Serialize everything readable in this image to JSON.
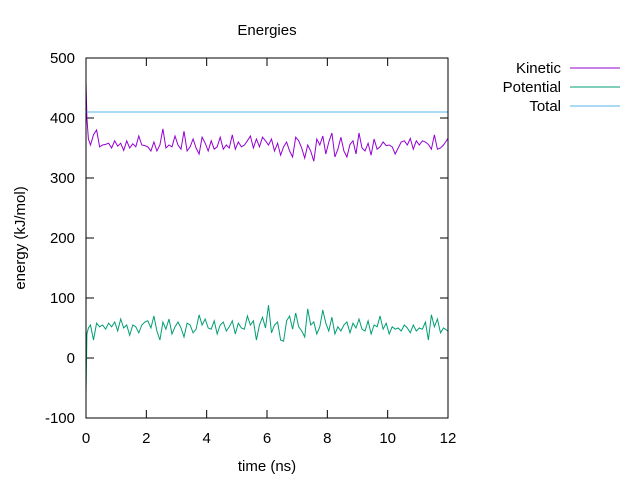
{
  "chart_data": {
    "type": "line",
    "title": "Energies",
    "xlabel": "time (ns)",
    "ylabel": "energy (kJ/mol)",
    "xlim": [
      0,
      12
    ],
    "ylim": [
      -100,
      500
    ],
    "xticks": [
      "0",
      "2",
      "4",
      "6",
      "8",
      "10",
      "12"
    ],
    "yticks": [
      "-100",
      "0",
      "100",
      "200",
      "300",
      "400",
      "500"
    ],
    "grid": false,
    "legend_position": "outside-top-right",
    "series": [
      {
        "name": "Kinetic",
        "color": "#9400d3",
        "x": [
          0,
          0.03,
          0.08,
          0.15,
          0.25,
          0.35,
          0.45,
          0.55,
          0.65,
          0.75,
          0.85,
          0.95,
          1.05,
          1.15,
          1.25,
          1.35,
          1.45,
          1.55,
          1.65,
          1.75,
          1.85,
          1.95,
          2.05,
          2.15,
          2.25,
          2.35,
          2.45,
          2.55,
          2.65,
          2.75,
          2.85,
          2.95,
          3.05,
          3.15,
          3.25,
          3.35,
          3.45,
          3.55,
          3.65,
          3.75,
          3.85,
          3.95,
          4.05,
          4.15,
          4.25,
          4.35,
          4.45,
          4.55,
          4.65,
          4.75,
          4.85,
          4.95,
          5.05,
          5.15,
          5.25,
          5.35,
          5.45,
          5.55,
          5.65,
          5.75,
          5.85,
          5.95,
          6.05,
          6.15,
          6.25,
          6.35,
          6.45,
          6.55,
          6.65,
          6.75,
          6.85,
          6.95,
          7.05,
          7.15,
          7.25,
          7.35,
          7.45,
          7.55,
          7.65,
          7.75,
          7.85,
          7.95,
          8.05,
          8.15,
          8.25,
          8.35,
          8.45,
          8.55,
          8.65,
          8.75,
          8.85,
          8.95,
          9.05,
          9.15,
          9.25,
          9.35,
          9.45,
          9.55,
          9.65,
          9.75,
          9.85,
          9.95,
          10.05,
          10.15,
          10.25,
          10.35,
          10.45,
          10.55,
          10.65,
          10.75,
          10.85,
          10.95,
          11.05,
          11.15,
          11.25,
          11.35,
          11.45,
          11.55,
          11.65,
          11.75,
          11.85,
          12
        ],
        "y": [
          460,
          400,
          365,
          355,
          372,
          380,
          352,
          355,
          356,
          358,
          350,
          362,
          353,
          358,
          346,
          362,
          350,
          357,
          352,
          370,
          355,
          354,
          352,
          345,
          360,
          345,
          355,
          382,
          350,
          355,
          352,
          370,
          355,
          348,
          378,
          345,
          352,
          365,
          350,
          340,
          368,
          358,
          345,
          362,
          348,
          352,
          368,
          348,
          355,
          350,
          372,
          348,
          360,
          352,
          355,
          362,
          370,
          350,
          365,
          352,
          368,
          362,
          355,
          365,
          345,
          358,
          338,
          352,
          360,
          345,
          335,
          368,
          362,
          350,
          333,
          355,
          345,
          328,
          365,
          355,
          370,
          340,
          360,
          375,
          335,
          348,
          368,
          345,
          335,
          356,
          362,
          340,
          375,
          350,
          345,
          358,
          338,
          365,
          348,
          352,
          360,
          354,
          355,
          352,
          340,
          350,
          360,
          362,
          355,
          366,
          348,
          362,
          355,
          362,
          360,
          356,
          348,
          372,
          348,
          350,
          355,
          366
        ]
      },
      {
        "name": "Potential",
        "color": "#009e73",
        "x": [
          0,
          0.03,
          0.08,
          0.15,
          0.25,
          0.35,
          0.45,
          0.55,
          0.65,
          0.75,
          0.85,
          0.95,
          1.05,
          1.15,
          1.25,
          1.35,
          1.45,
          1.55,
          1.65,
          1.75,
          1.85,
          1.95,
          2.05,
          2.15,
          2.25,
          2.35,
          2.45,
          2.55,
          2.65,
          2.75,
          2.85,
          2.95,
          3.05,
          3.15,
          3.25,
          3.35,
          3.45,
          3.55,
          3.65,
          3.75,
          3.85,
          3.95,
          4.05,
          4.15,
          4.25,
          4.35,
          4.45,
          4.55,
          4.65,
          4.75,
          4.85,
          4.95,
          5.05,
          5.15,
          5.25,
          5.35,
          5.45,
          5.55,
          5.65,
          5.75,
          5.85,
          5.95,
          6.05,
          6.15,
          6.25,
          6.35,
          6.45,
          6.55,
          6.65,
          6.75,
          6.85,
          6.95,
          7.05,
          7.15,
          7.25,
          7.35,
          7.45,
          7.55,
          7.65,
          7.75,
          7.85,
          7.95,
          8.05,
          8.15,
          8.25,
          8.35,
          8.45,
          8.55,
          8.65,
          8.75,
          8.85,
          8.95,
          9.05,
          9.15,
          9.25,
          9.35,
          9.45,
          9.55,
          9.65,
          9.75,
          9.85,
          9.95,
          10.05,
          10.15,
          10.25,
          10.35,
          10.45,
          10.55,
          10.65,
          10.75,
          10.85,
          10.95,
          11.05,
          11.15,
          11.25,
          11.35,
          11.45,
          11.55,
          11.65,
          11.75,
          11.85,
          12
        ],
        "y": [
          -60,
          40,
          50,
          55,
          30,
          58,
          52,
          55,
          48,
          58,
          52,
          60,
          45,
          65,
          50,
          55,
          38,
          55,
          52,
          42,
          55,
          60,
          62,
          50,
          70,
          45,
          30,
          60,
          48,
          65,
          40,
          52,
          60,
          50,
          35,
          58,
          55,
          42,
          48,
          72,
          55,
          65,
          50,
          48,
          62,
          40,
          55,
          60,
          45,
          52,
          62,
          40,
          58,
          50,
          48,
          70,
          55,
          62,
          30,
          55,
          68,
          50,
          88,
          42,
          55,
          60,
          30,
          28,
          62,
          70,
          48,
          75,
          52,
          45,
          35,
          82,
          55,
          60,
          40,
          52,
          80,
          58,
          45,
          68,
          40,
          52,
          45,
          55,
          60,
          42,
          58,
          50,
          65,
          48,
          45,
          62,
          40,
          55,
          52,
          70,
          48,
          58,
          40,
          52,
          48,
          50,
          45,
          55,
          50,
          42,
          55,
          45,
          50,
          48,
          60,
          30,
          72,
          52,
          65,
          42,
          50,
          45
        ]
      },
      {
        "name": "Total",
        "color": "#56b4e9",
        "x": [
          0,
          12
        ],
        "y": [
          410,
          410
        ]
      }
    ]
  }
}
